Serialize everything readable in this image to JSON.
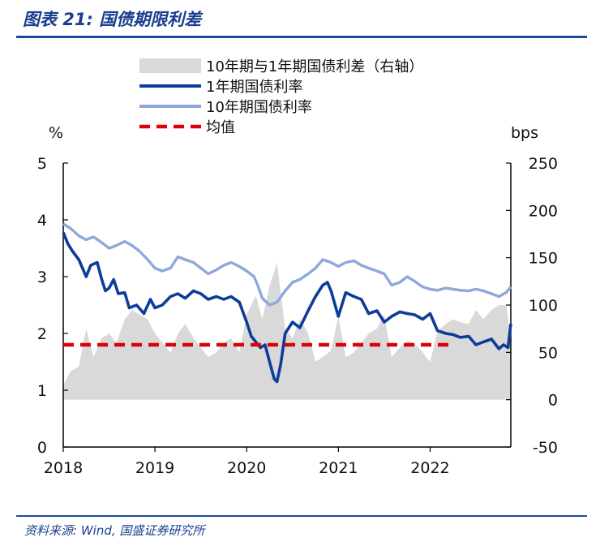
{
  "figure": {
    "title": "图表 21:  国债期限利差",
    "source": "资料来源: Wind, 国盛证券研究所"
  },
  "chart_data": {
    "type": "line",
    "title": "国债期限利差",
    "left_axis_unit": "%",
    "right_axis_unit": "bps",
    "ylim_left": [
      0,
      5
    ],
    "ylim_right": [
      -50,
      250
    ],
    "left_ticks": [
      "0",
      "1",
      "2",
      "3",
      "4",
      "5"
    ],
    "right_ticks": [
      "-50",
      "0",
      "50",
      "100",
      "150",
      "200",
      "250"
    ],
    "x_ticks": [
      "2018",
      "2019",
      "2020",
      "2021",
      "2022"
    ],
    "xlim": [
      2018.0,
      2022.88
    ],
    "legend": [
      {
        "label": "10年期与1年期国债利差（右轴）",
        "kind": "area",
        "color": "#d9d9d9"
      },
      {
        "label": "1年期国债利率",
        "kind": "line",
        "color": "#0d3d99"
      },
      {
        "label": "10年期国债利率",
        "kind": "line",
        "color": "#8fa8db"
      },
      {
        "label": "均值",
        "kind": "dash",
        "color": "#e00000"
      }
    ],
    "series": [
      {
        "name": "10年期国债利率",
        "axis": "left",
        "color": "#8fa8db",
        "x": [
          2018.0,
          2018.08,
          2018.17,
          2018.25,
          2018.33,
          2018.42,
          2018.5,
          2018.58,
          2018.67,
          2018.75,
          2018.83,
          2018.92,
          2019.0,
          2019.08,
          2019.17,
          2019.25,
          2019.33,
          2019.42,
          2019.5,
          2019.58,
          2019.67,
          2019.75,
          2019.83,
          2019.92,
          2020.0,
          2020.08,
          2020.12,
          2020.17,
          2020.25,
          2020.33,
          2020.42,
          2020.5,
          2020.58,
          2020.67,
          2020.75,
          2020.83,
          2020.92,
          2021.0,
          2021.08,
          2021.17,
          2021.25,
          2021.33,
          2021.42,
          2021.5,
          2021.58,
          2021.67,
          2021.75,
          2021.83,
          2021.92,
          2022.0,
          2022.08,
          2022.17,
          2022.25,
          2022.33,
          2022.42,
          2022.5,
          2022.58,
          2022.67,
          2022.75,
          2022.83,
          2022.88
        ],
        "values": [
          3.93,
          3.85,
          3.72,
          3.65,
          3.7,
          3.6,
          3.5,
          3.55,
          3.62,
          3.55,
          3.45,
          3.3,
          3.15,
          3.1,
          3.15,
          3.35,
          3.3,
          3.25,
          3.15,
          3.05,
          3.12,
          3.2,
          3.25,
          3.18,
          3.1,
          3.0,
          2.85,
          2.62,
          2.5,
          2.55,
          2.75,
          2.9,
          2.95,
          3.05,
          3.15,
          3.3,
          3.25,
          3.18,
          3.25,
          3.28,
          3.2,
          3.15,
          3.1,
          3.05,
          2.85,
          2.9,
          3.0,
          2.92,
          2.82,
          2.78,
          2.76,
          2.8,
          2.78,
          2.76,
          2.75,
          2.78,
          2.75,
          2.7,
          2.65,
          2.72,
          2.82
        ]
      },
      {
        "name": "1年期国债利率",
        "axis": "left",
        "color": "#0d3d99",
        "x": [
          2018.0,
          2018.05,
          2018.1,
          2018.17,
          2018.25,
          2018.3,
          2018.37,
          2018.42,
          2018.46,
          2018.5,
          2018.55,
          2018.6,
          2018.67,
          2018.72,
          2018.8,
          2018.88,
          2018.95,
          2019.0,
          2019.08,
          2019.17,
          2019.25,
          2019.33,
          2019.42,
          2019.5,
          2019.58,
          2019.67,
          2019.75,
          2019.83,
          2019.92,
          2020.0,
          2020.05,
          2020.1,
          2020.15,
          2020.2,
          2020.25,
          2020.3,
          2020.33,
          2020.37,
          2020.42,
          2020.5,
          2020.58,
          2020.67,
          2020.75,
          2020.83,
          2020.88,
          2020.92,
          2021.0,
          2021.08,
          2021.17,
          2021.25,
          2021.33,
          2021.42,
          2021.5,
          2021.58,
          2021.67,
          2021.75,
          2021.83,
          2021.92,
          2022.0,
          2022.08,
          2022.17,
          2022.25,
          2022.33,
          2022.42,
          2022.5,
          2022.58,
          2022.67,
          2022.75,
          2022.8,
          2022.85,
          2022.88
        ],
        "values": [
          3.78,
          3.58,
          3.45,
          3.3,
          3.0,
          3.2,
          3.25,
          2.95,
          2.75,
          2.8,
          2.95,
          2.7,
          2.72,
          2.45,
          2.5,
          2.35,
          2.6,
          2.45,
          2.5,
          2.65,
          2.7,
          2.62,
          2.75,
          2.7,
          2.6,
          2.65,
          2.6,
          2.65,
          2.55,
          2.2,
          1.95,
          1.85,
          1.75,
          1.8,
          1.5,
          1.2,
          1.15,
          1.45,
          2.0,
          2.2,
          2.1,
          2.4,
          2.65,
          2.85,
          2.9,
          2.75,
          2.3,
          2.72,
          2.65,
          2.6,
          2.35,
          2.4,
          2.2,
          2.3,
          2.38,
          2.35,
          2.33,
          2.25,
          2.35,
          2.05,
          2.0,
          1.98,
          1.93,
          1.95,
          1.8,
          1.85,
          1.9,
          1.73,
          1.8,
          1.75,
          2.17
        ]
      },
      {
        "name": "10年期与1年期国债利差（右轴）",
        "axis": "right",
        "color": "#d9d9d9",
        "x": [
          2018.0,
          2018.08,
          2018.17,
          2018.25,
          2018.33,
          2018.42,
          2018.5,
          2018.58,
          2018.67,
          2018.75,
          2018.83,
          2018.92,
          2019.0,
          2019.08,
          2019.17,
          2019.25,
          2019.33,
          2019.42,
          2019.5,
          2019.58,
          2019.67,
          2019.75,
          2019.83,
          2019.92,
          2020.0,
          2020.05,
          2020.1,
          2020.17,
          2020.25,
          2020.33,
          2020.42,
          2020.5,
          2020.58,
          2020.67,
          2020.75,
          2020.83,
          2020.92,
          2021.0,
          2021.08,
          2021.17,
          2021.25,
          2021.33,
          2021.42,
          2021.5,
          2021.58,
          2021.67,
          2021.75,
          2021.83,
          2021.92,
          2022.0,
          2022.08,
          2022.17,
          2022.25,
          2022.33,
          2022.42,
          2022.5,
          2022.58,
          2022.67,
          2022.75,
          2022.83,
          2022.88
        ],
        "values": [
          15,
          30,
          35,
          75,
          45,
          65,
          70,
          60,
          85,
          95,
          90,
          85,
          70,
          60,
          50,
          70,
          80,
          65,
          55,
          45,
          50,
          60,
          65,
          50,
          90,
          100,
          110,
          85,
          120,
          145,
          75,
          65,
          85,
          70,
          40,
          45,
          52,
          88,
          45,
          50,
          60,
          70,
          75,
          90,
          45,
          55,
          62,
          60,
          50,
          40,
          72,
          80,
          85,
          82,
          80,
          95,
          85,
          95,
          100,
          100,
          65
        ]
      }
    ],
    "mean_line": {
      "name": "均值",
      "axis": "left",
      "value": 1.8,
      "x_start": 2018.0,
      "x_end": 2022.25,
      "color": "#e00000"
    }
  }
}
